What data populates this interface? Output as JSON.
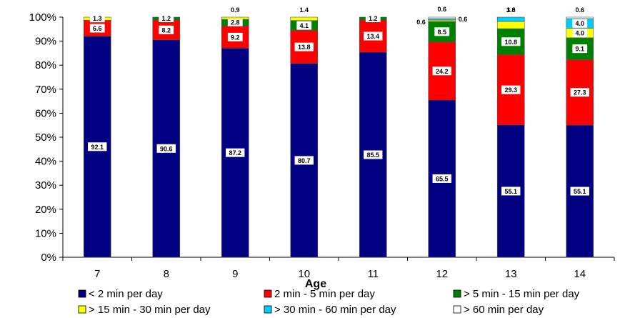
{
  "chart_data": {
    "type": "bar",
    "stacked": true,
    "title": "",
    "xlabel": "Age",
    "ylabel": "",
    "ylim": [
      0,
      100
    ],
    "y_ticks": [
      "0%",
      "10%",
      "20%",
      "30%",
      "40%",
      "50%",
      "60%",
      "70%",
      "80%",
      "90%",
      "100%"
    ],
    "categories": [
      "7",
      "8",
      "9",
      "10",
      "11",
      "12",
      "13",
      "14"
    ],
    "legend_position": "bottom",
    "grid": false,
    "series": [
      {
        "name": "< 2 min per day",
        "color": "#000080",
        "values": [
          92.1,
          90.6,
          87.2,
          80.7,
          85.5,
          65.5,
          55.1,
          55.1
        ],
        "labels": [
          "92.1",
          "90.6",
          "87.2",
          "80.7",
          "85.5",
          "65.5",
          "55.1",
          "55.1"
        ]
      },
      {
        "name": "2 min - 5 min per day",
        "color": "#ff0000",
        "values": [
          6.6,
          8.2,
          9.2,
          13.8,
          13.4,
          24.2,
          29.3,
          27.3
        ],
        "labels": [
          "6.6",
          "8.2",
          "9.2",
          "13.8",
          "13.4",
          "24.2",
          "29.3",
          "27.3"
        ]
      },
      {
        "name": "> 5 min - 15 min per day",
        "color": "#008000",
        "values": [
          0,
          1.2,
          2.8,
          4.1,
          1.2,
          8.5,
          10.8,
          9.1
        ],
        "labels": [
          "",
          "1.2",
          "2.8",
          "4.1",
          "1.2",
          "8.5",
          "10.8",
          "9.1"
        ]
      },
      {
        "name": "> 15 min - 30 min per day",
        "color": "#ffff00",
        "values": [
          1.3,
          0,
          0.9,
          1.4,
          0,
          0.6,
          3.0,
          4.0
        ],
        "labels": [
          "1.3",
          "",
          "0.9",
          "1.4",
          "",
          "0.6",
          "3.0",
          "4.0"
        ]
      },
      {
        "name": "> 30 min - 60 min per day",
        "color": "#00ccff",
        "values": [
          0,
          0,
          0,
          0,
          0,
          0.6,
          1.8,
          4.0
        ],
        "labels": [
          "",
          "",
          "",
          "",
          "",
          "0.6",
          "1.8",
          "4.0"
        ]
      },
      {
        "name": "> 60 min per day",
        "color": "#ffffff",
        "values": [
          0,
          0,
          0,
          0,
          0,
          0.6,
          0,
          0.6
        ],
        "labels": [
          "",
          "",
          "",
          "",
          "",
          "0.6",
          "",
          "0.6"
        ]
      }
    ]
  }
}
